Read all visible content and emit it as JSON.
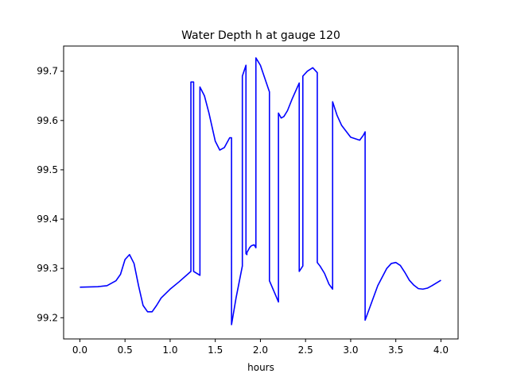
{
  "chart_data": {
    "type": "line",
    "title": "Water Depth h at gauge 120",
    "xlabel": "hours",
    "ylabel": "",
    "xlim": [
      -0.18,
      4.19
    ],
    "ylim": [
      99.157,
      99.751
    ],
    "xticks": [
      0.0,
      0.5,
      1.0,
      1.5,
      2.0,
      2.5,
      3.0,
      3.5,
      4.0
    ],
    "xtick_labels": [
      "0.0",
      "0.5",
      "1.0",
      "1.5",
      "2.0",
      "2.5",
      "3.0",
      "3.5",
      "4.0"
    ],
    "yticks": [
      99.2,
      99.3,
      99.4,
      99.5,
      99.6,
      99.7
    ],
    "ytick_labels": [
      "99.2",
      "99.3",
      "99.4",
      "99.5",
      "99.6",
      "99.7"
    ],
    "grid": false,
    "series": [
      {
        "color": "#0000ff",
        "x": [
          0.0,
          0.2,
          0.3,
          0.4,
          0.45,
          0.5,
          0.55,
          0.6,
          0.65,
          0.7,
          0.75,
          0.8,
          0.85,
          0.9,
          1.0,
          1.1,
          1.23,
          1.23,
          1.26,
          1.26,
          1.33,
          1.33,
          1.38,
          1.43,
          1.5,
          1.55,
          1.6,
          1.66,
          1.68,
          1.68,
          1.73,
          1.8,
          1.8,
          1.84,
          1.84,
          1.85,
          1.85,
          1.88,
          1.9,
          1.93,
          1.95,
          1.95,
          2.0,
          2.1,
          2.1,
          2.17,
          2.2,
          2.2,
          2.23,
          2.26,
          2.3,
          2.35,
          2.43,
          2.43,
          2.47,
          2.47,
          2.52,
          2.58,
          2.63,
          2.63,
          2.66,
          2.71,
          2.76,
          2.8,
          2.8,
          2.85,
          2.9,
          3.0,
          3.1,
          3.14,
          3.16,
          3.16,
          3.2,
          3.3,
          3.4,
          3.45,
          3.5,
          3.55,
          3.6,
          3.65,
          3.7,
          3.75,
          3.8,
          3.85,
          3.9,
          4.0
        ],
        "y": [
          99.262,
          99.263,
          99.265,
          99.275,
          99.288,
          99.318,
          99.328,
          99.31,
          99.265,
          99.225,
          99.212,
          99.212,
          99.225,
          99.24,
          99.258,
          99.273,
          99.294,
          99.678,
          99.678,
          99.294,
          99.286,
          99.668,
          99.65,
          99.615,
          99.558,
          99.54,
          99.545,
          99.565,
          99.565,
          99.186,
          99.24,
          99.305,
          99.69,
          99.712,
          99.33,
          99.328,
          99.332,
          99.342,
          99.346,
          99.348,
          99.342,
          99.727,
          99.712,
          99.658,
          99.275,
          99.245,
          99.232,
          99.615,
          99.605,
          99.608,
          99.62,
          99.643,
          99.676,
          99.294,
          99.305,
          99.69,
          99.7,
          99.707,
          99.697,
          99.312,
          99.305,
          99.29,
          99.268,
          99.258,
          99.638,
          99.61,
          99.59,
          99.566,
          99.56,
          99.57,
          99.577,
          99.195,
          99.215,
          99.265,
          99.3,
          99.31,
          99.312,
          99.306,
          99.292,
          99.276,
          99.266,
          99.259,
          99.258,
          99.26,
          99.265,
          99.276
        ]
      }
    ]
  }
}
